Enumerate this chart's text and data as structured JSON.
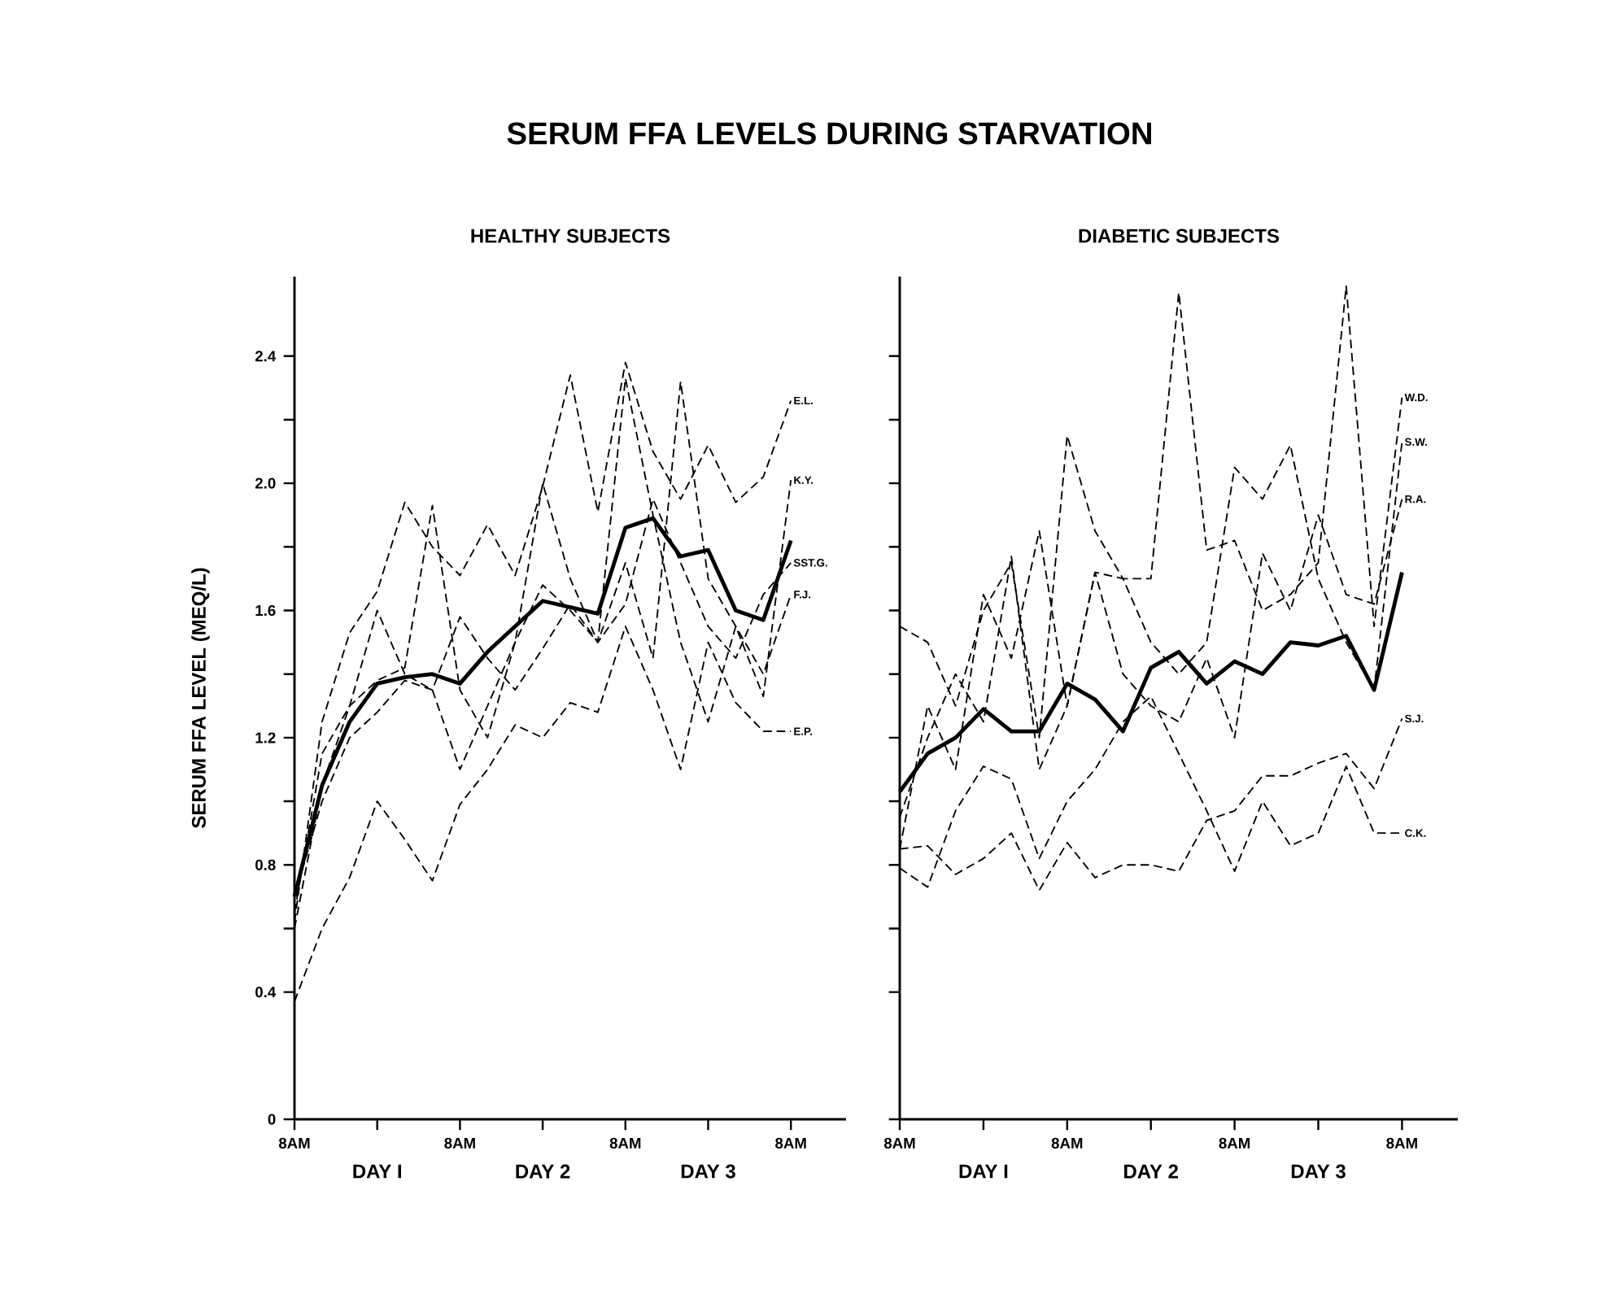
{
  "chart_data": [
    {
      "type": "line",
      "title": "SERUM FFA LEVELS DURING STARVATION",
      "subtitle": "HEALTHY SUBJECTS",
      "ylabel": "SERUM FFA LEVEL (MEQ/L)",
      "categories": [
        "8AM",
        null,
        null,
        null,
        null,
        null,
        "8AM",
        null,
        null,
        null,
        null,
        null,
        "8AM",
        null,
        null,
        null,
        null,
        null,
        "8AM"
      ],
      "ylim": [
        0,
        2.65
      ],
      "yticks": [
        0,
        0.4,
        {
          "value": 0.6,
          "label": null
        },
        0.8,
        {
          "value": 1.0,
          "label": null
        },
        1.2,
        {
          "value": 1.4,
          "label": null
        },
        1.6,
        {
          "value": 1.8,
          "label": null
        },
        {
          "value": 2.0,
          "label": "2.0"
        },
        {
          "value": 2.2,
          "label": null
        },
        2.4
      ],
      "annotations": [
        "DAY I",
        "DAY 2",
        "DAY 3"
      ],
      "series": [
        {
          "name": "E.L.",
          "color": "#000000",
          "line_style": "dashed",
          "values": [
            0.62,
            1.25,
            1.53,
            1.66,
            1.94,
            1.8,
            1.71,
            1.87,
            1.71,
            1.99,
            2.34,
            1.91,
            2.38,
            2.1,
            1.95,
            2.12,
            1.94,
            2.02,
            2.26
          ]
        },
        {
          "name": "K.Y.",
          "color": "#000000",
          "line_style": "dashed",
          "values": [
            0.6,
            1.05,
            1.3,
            1.6,
            1.4,
            1.35,
            1.1,
            1.3,
            1.5,
            1.68,
            1.6,
            1.5,
            2.33,
            1.9,
            1.5,
            1.25,
            1.55,
            1.33,
            2.01
          ]
        },
        {
          "name": "SST.G.",
          "color": "#000000",
          "line_style": "dashed",
          "values": [
            0.65,
            1.15,
            1.3,
            1.38,
            1.42,
            1.93,
            1.35,
            1.2,
            1.5,
            2.0,
            1.7,
            1.5,
            1.62,
            1.95,
            1.75,
            1.55,
            1.45,
            1.65,
            1.75
          ]
        },
        {
          "name": "F.J.",
          "color": "#000000",
          "line_style": "dashed",
          "values": [
            0.7,
            1.0,
            1.2,
            1.28,
            1.38,
            1.35,
            1.58,
            1.45,
            1.35,
            1.48,
            1.62,
            1.5,
            1.75,
            1.45,
            2.32,
            1.7,
            1.55,
            1.4,
            1.65
          ]
        },
        {
          "name": "E.P.",
          "color": "#000000",
          "line_style": "dashed",
          "values": [
            0.37,
            0.6,
            0.76,
            1.0,
            0.88,
            0.75,
            0.99,
            1.1,
            1.24,
            1.2,
            1.31,
            1.28,
            1.55,
            1.35,
            1.1,
            1.5,
            1.31,
            1.22,
            1.22
          ]
        },
        {
          "color": "#000000",
          "line_style": "solid",
          "values": [
            0.7,
            1.05,
            1.25,
            1.37,
            1.39,
            1.4,
            1.37,
            1.47,
            1.55,
            1.63,
            1.61,
            1.59,
            1.86,
            1.89,
            1.77,
            1.79,
            1.6,
            1.57,
            1.82
          ]
        }
      ]
    },
    {
      "type": "line",
      "subtitle": "DIABETIC SUBJECTS",
      "tick_labels": "x",
      "categories": [
        "8AM",
        null,
        null,
        null,
        null,
        null,
        "8AM",
        null,
        null,
        null,
        null,
        null,
        "8AM",
        null,
        null,
        null,
        null,
        null,
        "8AM"
      ],
      "ylim": [
        0,
        2.65
      ],
      "yticks": [
        0,
        0.4,
        0.6,
        0.8,
        1.0,
        1.2,
        1.4,
        1.6,
        1.8,
        2.0,
        2.2,
        2.4
      ],
      "annotations": [
        "DAY I",
        "DAY 2",
        "DAY 3"
      ],
      "series": [
        {
          "name": "W.D.",
          "color": "#000000",
          "line_style": "dashed",
          "values": [
            1.55,
            1.5,
            1.3,
            1.6,
            1.75,
            1.2,
            2.15,
            1.85,
            1.7,
            1.7,
            2.6,
            1.79,
            1.82,
            1.6,
            1.65,
            1.75,
            2.62,
            1.55,
            2.27
          ]
        },
        {
          "name": "S.W.",
          "color": "#000000",
          "line_style": "dashed",
          "values": [
            0.85,
            1.3,
            1.1,
            1.65,
            1.45,
            1.85,
            1.3,
            1.72,
            1.7,
            1.5,
            1.4,
            1.5,
            2.05,
            1.95,
            2.12,
            1.7,
            1.5,
            1.35,
            2.13
          ]
        },
        {
          "name": "R.A.",
          "color": "#000000",
          "line_style": "dashed",
          "values": [
            0.95,
            1.2,
            1.4,
            1.25,
            1.77,
            1.1,
            1.3,
            1.72,
            1.4,
            1.3,
            1.25,
            1.45,
            1.2,
            1.78,
            1.6,
            1.9,
            1.65,
            1.62,
            1.95
          ]
        },
        {
          "name": "S.J.",
          "color": "#000000",
          "line_style": "dashed",
          "values": [
            0.85,
            0.86,
            0.77,
            0.82,
            0.9,
            0.72,
            0.87,
            0.76,
            0.8,
            0.8,
            0.78,
            0.94,
            0.97,
            1.08,
            1.08,
            1.12,
            1.15,
            1.04,
            1.26
          ]
        },
        {
          "name": "C.K.",
          "color": "#000000",
          "line_style": "dashed",
          "values": [
            0.79,
            0.73,
            0.97,
            1.11,
            1.07,
            0.82,
            1.0,
            1.1,
            1.25,
            1.33,
            1.15,
            0.97,
            0.78,
            1.0,
            0.86,
            0.9,
            1.11,
            0.9,
            0.9
          ]
        },
        {
          "color": "#000000",
          "line_style": "solid",
          "values": [
            1.03,
            1.15,
            1.2,
            1.29,
            1.22,
            1.22,
            1.37,
            1.32,
            1.22,
            1.42,
            1.47,
            1.37,
            1.44,
            1.4,
            1.5,
            1.49,
            1.52,
            1.35,
            1.72
          ]
        }
      ]
    }
  ]
}
